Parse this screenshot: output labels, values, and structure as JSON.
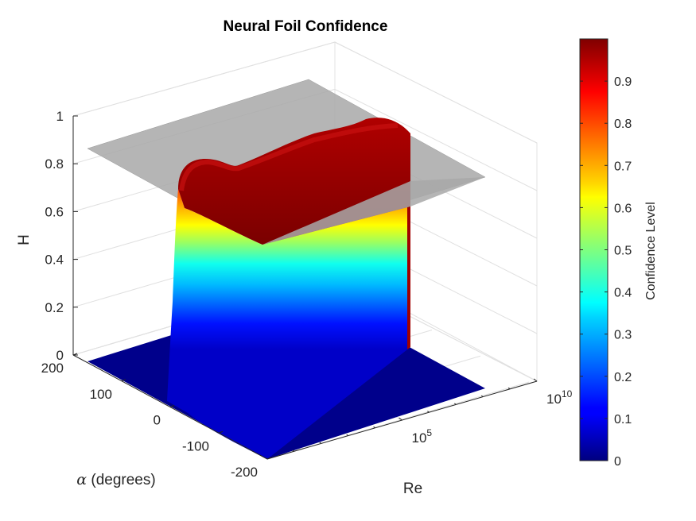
{
  "chart_data": {
    "type": "surface",
    "title": "Neural Foil Confidence",
    "xlabel": "Re",
    "ylabel_prefix": "α",
    "ylabel_suffix": " (degrees)",
    "zlabel": "H",
    "colorbar_label": "Confidence Level",
    "colormap": "jet",
    "x_scale": "log",
    "xlim": [
      1,
      10000000000
    ],
    "ylim": [
      -200,
      200
    ],
    "zlim": [
      0,
      1
    ],
    "x_ticks": [
      {
        "base": "10",
        "exp": "5"
      },
      {
        "base": "10",
        "exp": "10"
      }
    ],
    "y_ticks": [
      "-200",
      "-100",
      "0",
      "100",
      "200"
    ],
    "z_ticks": [
      "0",
      "0.2",
      "0.4",
      "0.6",
      "0.8",
      "1"
    ],
    "colorbar_ticks": [
      "0",
      "0.1",
      "0.2",
      "0.3",
      "0.4",
      "0.5",
      "0.6",
      "0.7",
      "0.8",
      "0.9"
    ],
    "colorbar_range": [
      0,
      1
    ],
    "threshold_plane_z": 0.8,
    "grid": true,
    "surface_summary": {
      "high_confidence_alpha_range": [
        -25,
        25
      ],
      "high_confidence_Re_range": [
        10000,
        10000000000
      ],
      "plateau_value": 0.95,
      "base_value": 0
    }
  }
}
